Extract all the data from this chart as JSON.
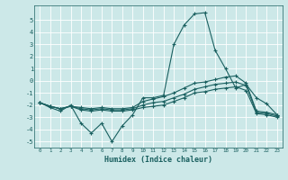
{
  "xlabel": "Humidex (Indice chaleur)",
  "ylabel": "",
  "background_color": "#cce8e8",
  "grid_color": "#ffffff",
  "line_color": "#1a6060",
  "xlim": [
    -0.5,
    23.5
  ],
  "ylim": [
    -5.5,
    6.2
  ],
  "yticks": [
    -5,
    -4,
    -3,
    -2,
    -1,
    0,
    1,
    2,
    3,
    4,
    5
  ],
  "xticks": [
    0,
    1,
    2,
    3,
    4,
    5,
    6,
    7,
    8,
    9,
    10,
    11,
    12,
    13,
    14,
    15,
    16,
    17,
    18,
    19,
    20,
    21,
    22,
    23
  ],
  "line1_x": [
    0,
    1,
    2,
    3,
    4,
    5,
    6,
    7,
    8,
    9,
    10,
    11,
    12,
    13,
    14,
    15,
    16,
    17,
    18,
    19,
    20,
    21,
    22,
    23
  ],
  "line1_y": [
    -1.8,
    -2.2,
    -2.5,
    -2.0,
    -3.5,
    -4.3,
    -3.5,
    -5.0,
    -3.7,
    -2.8,
    -1.4,
    -1.4,
    -1.2,
    3.0,
    4.6,
    5.5,
    5.6,
    2.5,
    1.0,
    -0.6,
    -0.3,
    -1.4,
    -1.9,
    -2.8
  ],
  "line2_x": [
    0,
    1,
    2,
    3,
    4,
    5,
    6,
    7,
    8,
    9,
    10,
    11,
    12,
    13,
    14,
    15,
    16,
    17,
    18,
    19,
    20,
    21,
    22,
    23
  ],
  "line2_y": [
    -1.8,
    -2.1,
    -2.3,
    -2.1,
    -2.2,
    -2.3,
    -2.2,
    -2.3,
    -2.3,
    -2.2,
    -1.7,
    -1.5,
    -1.3,
    -1.0,
    -0.6,
    -0.2,
    -0.1,
    0.1,
    0.3,
    0.4,
    -0.2,
    -2.5,
    -2.6,
    -2.8
  ],
  "line3_x": [
    0,
    1,
    2,
    3,
    4,
    5,
    6,
    7,
    8,
    9,
    10,
    11,
    12,
    13,
    14,
    15,
    16,
    17,
    18,
    19,
    20,
    21,
    22,
    23
  ],
  "line3_y": [
    -1.8,
    -2.1,
    -2.3,
    -2.1,
    -2.3,
    -2.4,
    -2.3,
    -2.4,
    -2.4,
    -2.3,
    -2.0,
    -1.8,
    -1.7,
    -1.4,
    -1.1,
    -0.7,
    -0.5,
    -0.3,
    -0.2,
    -0.1,
    -0.4,
    -2.6,
    -2.7,
    -2.9
  ],
  "line4_x": [
    0,
    1,
    2,
    3,
    4,
    5,
    6,
    7,
    8,
    9,
    10,
    11,
    12,
    13,
    14,
    15,
    16,
    17,
    18,
    19,
    20,
    21,
    22,
    23
  ],
  "line4_y": [
    -1.8,
    -2.1,
    -2.3,
    -2.1,
    -2.4,
    -2.5,
    -2.4,
    -2.5,
    -2.5,
    -2.4,
    -2.2,
    -2.1,
    -2.0,
    -1.7,
    -1.4,
    -1.0,
    -0.9,
    -0.7,
    -0.6,
    -0.5,
    -0.8,
    -2.7,
    -2.8,
    -3.0
  ]
}
